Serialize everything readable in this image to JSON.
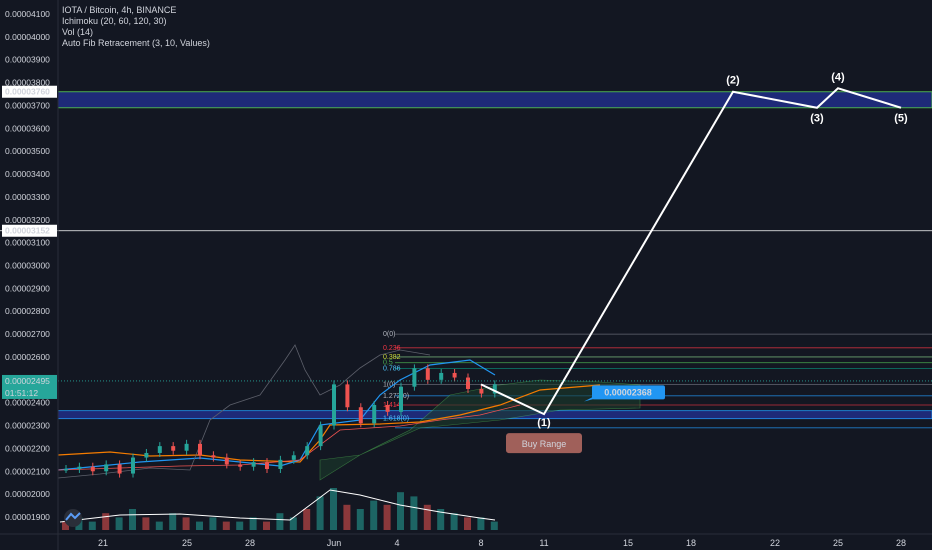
{
  "legend": {
    "symbol": "IOTA / Bitcoin, 4h, BINANCE",
    "indicators": [
      "Ichimoku (20, 60, 120, 30)",
      "Vol (14)",
      "Auto Fib Retracement (3, 10, Values)"
    ]
  },
  "colors": {
    "background": "#131722",
    "zone_fill": "#1e2a78",
    "zone_border": "#4caf50",
    "wave_line": "#ffffff",
    "price_tag": "#26a69a",
    "buy_range_bg": "#a0605a",
    "target_label_bg": "#2196f3",
    "candle_up": "#26a69a",
    "candle_down": "#ef5350"
  },
  "chart_data": {
    "type": "line",
    "title": "IOTA / Bitcoin, 4h, BINANCE",
    "yaxis_ticks": [
      "0.00004100",
      "0.00004000",
      "0.00003900",
      "0.00003800",
      "0.00003700",
      "0.00003600",
      "0.00003500",
      "0.00003400",
      "0.00003300",
      "0.00003200",
      "0.00003100",
      "0.00003000",
      "0.00002900",
      "0.00002800",
      "0.00002700",
      "0.00002600",
      "0.00002400",
      "0.00002300",
      "0.00002200",
      "0.00002100",
      "0.00002000",
      "0.00001900"
    ],
    "ylim": [
      1.84e-05,
      4.15e-05
    ],
    "xaxis_ticks": [
      "21",
      "25",
      "28",
      "Jun",
      "4",
      "8",
      "11",
      "15",
      "18",
      "22",
      "25",
      "28"
    ],
    "highlighted_prices": {
      "upper": "0.00003760",
      "middle": "0.00003152",
      "current": "0.00002495",
      "countdown": "01:51:12"
    },
    "target_zone": {
      "top": 3.76e-05,
      "bottom": 3.69e-05
    },
    "buy_zone": {
      "top": 2.365e-05,
      "bottom": 2.33e-05
    },
    "wave_labels": [
      "(1)",
      "(2)",
      "(3)",
      "(4)",
      "(5)"
    ],
    "wave_points": [
      {
        "date": "Jun 8",
        "price": 2.48e-05
      },
      {
        "date": "Jun 11",
        "price": 2.35e-05
      },
      {
        "date": "Jun 20",
        "price": 3.76e-05
      },
      {
        "date": "Jun 24",
        "price": 3.69e-05
      },
      {
        "date": "Jun 25",
        "price": 3.775e-05
      },
      {
        "date": "Jun 28",
        "price": 3.69e-05
      }
    ],
    "target_label": "0.00002368",
    "buy_range_label": "Buy Range",
    "fib_labels": [
      "0(0)",
      "0.236",
      "0.382",
      "0.5",
      "0.786",
      "1(0)",
      "1.272(0)",
      "1.414",
      "1.618(0)"
    ],
    "price_series": {
      "name": "IOTA/BTC",
      "values": [
        2.11e-05,
        2.12e-05,
        2.1e-05,
        2.13e-05,
        2.09e-05,
        2.16e-05,
        2.18e-05,
        2.21e-05,
        2.19e-05,
        2.22e-05,
        2.17e-05,
        2.16e-05,
        2.13e-05,
        2.12e-05,
        2.14e-05,
        2.11e-05,
        2.15e-05,
        2.17e-05,
        2.21e-05,
        2.3e-05,
        2.48e-05,
        2.38e-05,
        2.31e-05,
        2.39e-05,
        2.36e-05,
        2.47e-05,
        2.55e-05,
        2.5e-05,
        2.53e-05,
        2.51e-05,
        2.46e-05,
        2.44e-05,
        2.48e-05
      ]
    },
    "volume_series": {
      "name": "Vol",
      "values": [
        2,
        3,
        2,
        4,
        3,
        5,
        3,
        2,
        4,
        3,
        2,
        3,
        2,
        2,
        3,
        2,
        4,
        3,
        5,
        8,
        10,
        6,
        5,
        7,
        6,
        9,
        8,
        6,
        5,
        4,
        3,
        3,
        2
      ]
    }
  }
}
